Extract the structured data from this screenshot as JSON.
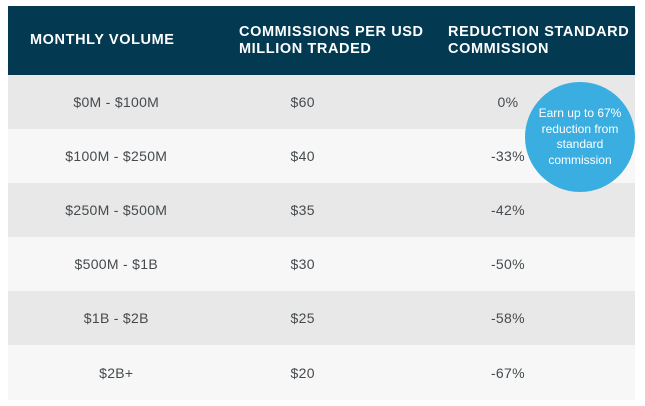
{
  "table": {
    "headers": [
      "MONTHLY VOLUME",
      "COMMISSIONS PER USD MILLION TRADED",
      "REDUCTION STANDARD COMMISSION"
    ],
    "rows": [
      {
        "volume": "$0M - $100M",
        "commission": "$60",
        "reduction": "0%"
      },
      {
        "volume": "$100M - $250M",
        "commission": "$40",
        "reduction": "-33%"
      },
      {
        "volume": "$250M - $500M",
        "commission": "$35",
        "reduction": "-42%"
      },
      {
        "volume": "$500M - $1B",
        "commission": "$30",
        "reduction": "-50%"
      },
      {
        "volume": "$1B - $2B",
        "commission": "$25",
        "reduction": "-58%"
      },
      {
        "volume": "$2B+",
        "commission": "$20",
        "reduction": "-67%"
      }
    ]
  },
  "promo_bubble": {
    "text": "Earn up to 67% reduction from standard commission"
  },
  "colors": {
    "header_bg": "#033a52",
    "bubble_bg": "#3aaee0",
    "row_odd": "#e8e8e8",
    "row_even": "#f7f7f7"
  }
}
